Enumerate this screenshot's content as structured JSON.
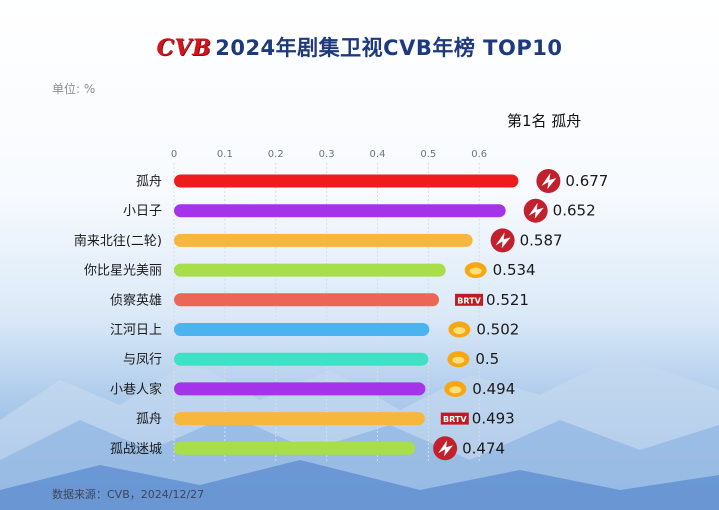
{
  "header": {
    "logo_text": "CVB",
    "title": "2024年剧集卫视CVB年榜 TOP10"
  },
  "unit_label": "单位: %",
  "rank_caption": "第1名 孤舟",
  "footer": {
    "source": "数据来源：CVB，2024/12/27"
  },
  "channel_colors": {
    "bars": [
      "#ee1c1c",
      "#a533ea",
      "#f6b73c",
      "#a7de4a",
      "#ec6656",
      "#4ab4f0",
      "#3fe0c4",
      "#a533ea",
      "#f6b73c",
      "#a7de4a"
    ]
  },
  "chart_data": {
    "type": "bar",
    "orientation": "horizontal",
    "title": "2024年剧集卫视CVB年榜 TOP10",
    "xlabel": "",
    "ylabel": "",
    "unit": "%",
    "xlim": [
      0,
      0.7
    ],
    "xticks": [
      "0",
      "0.1",
      "0.2",
      "0.3",
      "0.4",
      "0.5",
      "0.6"
    ],
    "grid": true,
    "categories": [
      "孤舟",
      "小日子",
      "南来北往(二轮)",
      "你比星光美丽",
      "侦察英雄",
      "江河日上",
      "与凤行",
      "小巷人家",
      "孤舟",
      "孤战迷城"
    ],
    "values": [
      0.677,
      0.652,
      0.587,
      0.534,
      0.521,
      0.502,
      0.5,
      0.494,
      0.493,
      0.474
    ],
    "value_labels": [
      "0.677",
      "0.652",
      "0.587",
      "0.534",
      "0.521",
      "0.502",
      "0.5",
      "0.494",
      "0.493",
      "0.474"
    ],
    "channel_icons": [
      "dragon-tv-icon",
      "dragon-tv-icon",
      "dragon-tv-icon",
      "hunan-tv-icon",
      "btv-icon",
      "hunan-tv-icon",
      "hunan-tv-icon",
      "hunan-tv-icon",
      "btv-icon",
      "dragon-tv-icon"
    ],
    "btv_badge_text": "BRTV"
  }
}
